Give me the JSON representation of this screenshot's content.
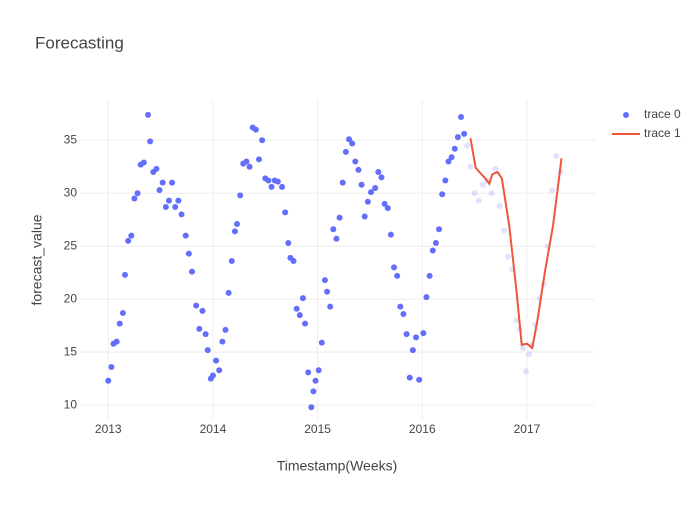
{
  "chart_data": {
    "type": "scatter",
    "title": "Forecasting",
    "x_label": "Timestamp(Weeks)",
    "y_label": "forecast_value",
    "xlim": [
      2012.73,
      2017.65
    ],
    "ylim": [
      8.6,
      38.8
    ],
    "xticks": [
      2013,
      2014,
      2015,
      2016,
      2017
    ],
    "yticks": [
      10,
      15,
      20,
      25,
      30,
      35
    ],
    "grid": true,
    "legend": "top-right",
    "faded_after": 2016.41,
    "series": [
      {
        "name": "trace 0",
        "mode": "markers",
        "color": "#636efa",
        "x": [
          2013.0,
          2013.03,
          2013.05,
          2013.08,
          2013.11,
          2013.14,
          2013.16,
          2013.19,
          2013.22,
          2013.25,
          2013.28,
          2013.31,
          2013.34,
          2013.38,
          2013.4,
          2013.43,
          2013.46,
          2013.49,
          2013.52,
          2013.55,
          2013.58,
          2013.61,
          2013.64,
          2013.67,
          2013.7,
          2013.74,
          2013.77,
          2013.8,
          2013.84,
          2013.87,
          2013.9,
          2013.93,
          2013.95,
          2013.98,
          2014.0,
          2014.03,
          2014.06,
          2014.09,
          2014.12,
          2014.15,
          2014.18,
          2014.21,
          2014.23,
          2014.26,
          2014.29,
          2014.32,
          2014.35,
          2014.38,
          2014.41,
          2014.44,
          2014.47,
          2014.5,
          2014.53,
          2014.56,
          2014.59,
          2014.62,
          2014.66,
          2014.69,
          2014.72,
          2014.74,
          2014.77,
          2014.8,
          2014.83,
          2014.86,
          2014.88,
          2014.91,
          2014.94,
          2014.96,
          2014.98,
          2015.01,
          2015.04,
          2015.07,
          2015.09,
          2015.12,
          2015.15,
          2015.18,
          2015.21,
          2015.24,
          2015.27,
          2015.3,
          2015.33,
          2015.36,
          2015.39,
          2015.42,
          2015.45,
          2015.48,
          2015.51,
          2015.55,
          2015.58,
          2015.61,
          2015.64,
          2015.67,
          2015.7,
          2015.73,
          2015.76,
          2015.79,
          2015.82,
          2015.85,
          2015.88,
          2015.91,
          2015.94,
          2015.97,
          2016.01,
          2016.04,
          2016.07,
          2016.1,
          2016.13,
          2016.16,
          2016.19,
          2016.22,
          2016.25,
          2016.28,
          2016.31,
          2016.34,
          2016.37,
          2016.4,
          2016.43,
          2016.46,
          2016.5,
          2016.54,
          2016.58,
          2016.62,
          2016.66,
          2016.7,
          2016.74,
          2016.78,
          2016.82,
          2016.86,
          2016.9,
          2016.93,
          2016.96,
          2016.99,
          2017.02,
          2017.05,
          2017.08,
          2017.12,
          2017.16,
          2017.2,
          2017.24,
          2017.28,
          2017.32
        ],
        "values": [
          12.3,
          13.6,
          15.8,
          16.0,
          17.7,
          18.7,
          22.3,
          25.5,
          26.0,
          29.5,
          30.0,
          32.7,
          32.9,
          37.4,
          34.9,
          32.0,
          32.3,
          30.3,
          31.0,
          28.7,
          29.3,
          31.0,
          28.7,
          29.3,
          28.0,
          26.0,
          24.3,
          22.6,
          19.4,
          17.2,
          18.9,
          16.7,
          15.2,
          12.5,
          12.8,
          14.2,
          13.3,
          16.0,
          17.1,
          20.6,
          23.6,
          26.4,
          27.1,
          29.8,
          32.8,
          33.0,
          32.5,
          36.2,
          36.0,
          33.2,
          35.0,
          31.4,
          31.2,
          30.6,
          31.2,
          31.1,
          30.6,
          28.2,
          25.3,
          23.9,
          23.6,
          19.1,
          18.5,
          20.1,
          17.7,
          13.1,
          9.8,
          11.3,
          12.3,
          13.3,
          15.9,
          21.8,
          20.7,
          19.3,
          26.6,
          25.7,
          27.7,
          31.0,
          33.9,
          35.1,
          34.7,
          33.0,
          32.2,
          30.8,
          27.8,
          29.2,
          30.1,
          30.5,
          32.0,
          31.5,
          29.0,
          28.6,
          26.1,
          23.0,
          22.2,
          19.3,
          18.6,
          16.7,
          12.6,
          15.2,
          16.4,
          12.4,
          16.8,
          20.2,
          22.2,
          24.6,
          25.3,
          26.6,
          29.9,
          31.2,
          33.0,
          33.4,
          34.2,
          35.3,
          37.2,
          35.6,
          34.5,
          32.5,
          30.0,
          29.3,
          30.8,
          31.2,
          30.0,
          32.3,
          28.8,
          26.5,
          24.0,
          22.8,
          18.0,
          17.2,
          15.4,
          13.2,
          14.8,
          15.7,
          17.6,
          20.1,
          21.4,
          25.0,
          30.3,
          33.5,
          32.0
        ]
      },
      {
        "name": "trace 1",
        "mode": "lines",
        "color": "#ef553b",
        "x": [
          2016.46,
          2016.51,
          2016.61,
          2016.64,
          2016.67,
          2016.72,
          2016.76,
          2016.83,
          2016.9,
          2016.95,
          2017.0,
          2017.05,
          2017.1,
          2017.17,
          2017.25,
          2017.33
        ],
        "values": [
          35.2,
          32.4,
          31.3,
          30.9,
          31.8,
          32.0,
          31.4,
          27.0,
          20.8,
          15.7,
          15.8,
          15.4,
          18.0,
          22.5,
          27.0,
          33.3
        ]
      }
    ]
  }
}
